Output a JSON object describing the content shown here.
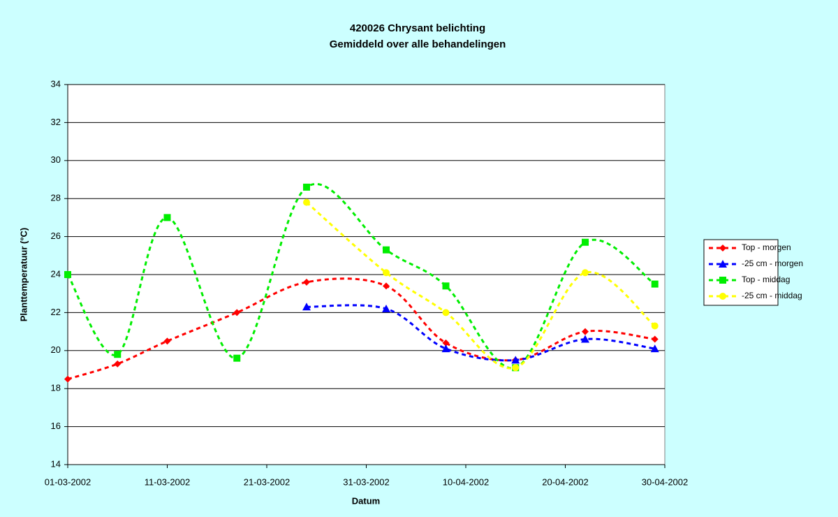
{
  "chart_data": {
    "type": "line",
    "title": "420026 Chrysant belichting",
    "subtitle": "Gemiddeld over alle behandelingen",
    "x_label": "Datum",
    "y_label": "Planttemperatuur (°C)",
    "x": [
      "01-03-2002",
      "06-03-2002",
      "11-03-2002",
      "18-03-2002",
      "25-03-2002",
      "02-04-2002",
      "08-04-2002",
      "15-04-2002",
      "22-04-2002",
      "29-04-2002"
    ],
    "xlim": [
      "01-03-2002",
      "30-04-2002"
    ],
    "xticks": [
      "01-03-2002",
      "11-03-2002",
      "21-03-2002",
      "31-03-2002",
      "10-04-2002",
      "20-04-2002",
      "30-04-2002"
    ],
    "ylim": [
      14,
      34
    ],
    "yticks": [
      14,
      16,
      18,
      20,
      22,
      24,
      26,
      28,
      30,
      32,
      34
    ],
    "grid": true,
    "legend": "right",
    "series": [
      {
        "name": "Top - morgen",
        "color": "#ff0000",
        "marker": "diamond",
        "values": [
          18.5,
          19.3,
          20.5,
          22.0,
          23.6,
          23.4,
          20.4,
          19.5,
          21.0,
          20.6
        ]
      },
      {
        "name": "-25 cm - morgen",
        "color": "#0000ff",
        "marker": "triangle",
        "values": [
          null,
          null,
          null,
          null,
          22.3,
          22.2,
          20.1,
          19.5,
          20.6,
          20.1
        ]
      },
      {
        "name": "Top - middag",
        "color": "#00ee00",
        "marker": "square",
        "values": [
          24.0,
          19.8,
          27.0,
          19.6,
          28.6,
          25.3,
          23.4,
          19.1,
          25.7,
          23.5
        ]
      },
      {
        "name": "-25 cm - middag",
        "color": "#ffff00",
        "marker": "circle",
        "values": [
          null,
          null,
          null,
          null,
          27.8,
          24.1,
          22.0,
          19.1,
          24.1,
          21.3
        ]
      }
    ]
  }
}
